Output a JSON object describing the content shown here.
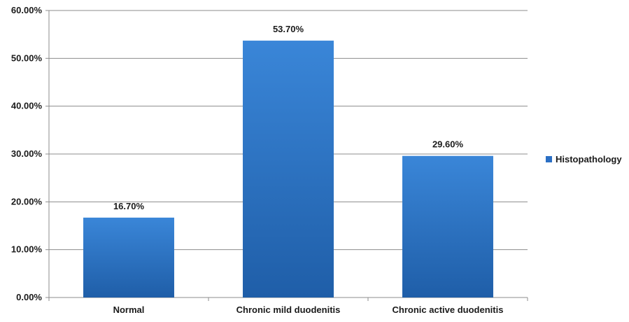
{
  "chart_data": {
    "type": "bar",
    "categories": [
      "Normal",
      "Chronic mild duodenitis",
      "Chronic active duodenitis"
    ],
    "series": [
      {
        "name": "Histopathology",
        "values": [
          16.7,
          53.7,
          29.6
        ],
        "labels": [
          "16.70%",
          "53.70%",
          "29.60%"
        ],
        "color": "#2b6fc4"
      }
    ],
    "ylim": [
      0,
      60
    ],
    "yticks": [
      0,
      10,
      20,
      30,
      40,
      50,
      60
    ],
    "ytick_labels": [
      "0.00%",
      "10.00%",
      "20.00%",
      "30.00%",
      "40.00%",
      "50.00%",
      "60.00%"
    ],
    "grid": true,
    "legend_position": "right",
    "title": "",
    "xlabel": "",
    "ylabel": ""
  }
}
